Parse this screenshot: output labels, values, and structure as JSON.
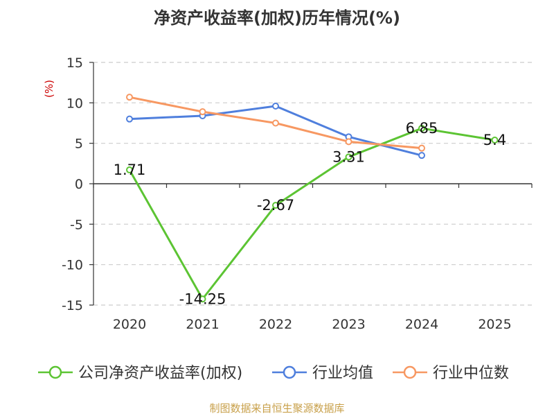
{
  "title": "净资产收益率(加权)历年情况(%)",
  "source_text": "制图数据来自恒生聚源数据库",
  "chart_data": {
    "type": "line",
    "title": "净资产收益率(加权)历年情况(%)",
    "ylabel": "(%)",
    "ylim": [
      -15,
      15
    ],
    "yticks": [
      15,
      10,
      5,
      0,
      -5,
      -10,
      -15
    ],
    "categories": [
      "2020",
      "2021",
      "2022",
      "2023",
      "2024",
      "2025"
    ],
    "series": [
      {
        "name": "公司净资产收益率(加权)",
        "color": "#5cc433",
        "values": [
          1.71,
          -14.25,
          -2.67,
          3.31,
          6.85,
          5.4
        ],
        "labels": [
          "1.71",
          "-14.25",
          "-2.67",
          "3.31",
          "6.85",
          "5.4"
        ]
      },
      {
        "name": "行业均值",
        "color": "#4f7fdd",
        "values": [
          8.0,
          8.4,
          9.6,
          5.8,
          3.5,
          null
        ]
      },
      {
        "name": "行业中位数",
        "color": "#f79862",
        "values": [
          10.7,
          8.9,
          7.5,
          5.2,
          4.4,
          null
        ]
      }
    ],
    "legend_position": "bottom",
    "grid": true
  }
}
